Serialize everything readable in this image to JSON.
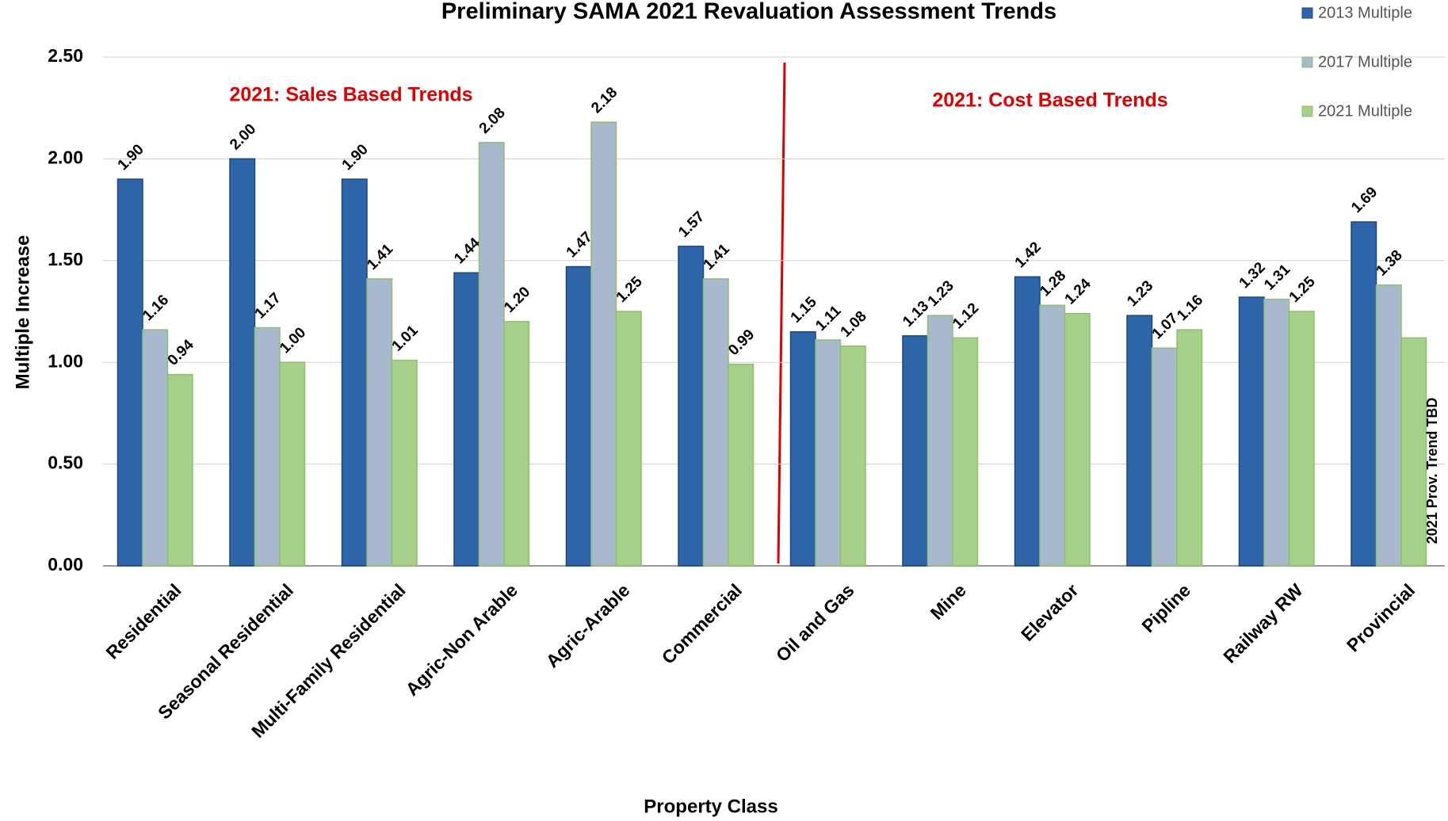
{
  "chart_data": {
    "type": "bar",
    "title": "Preliminary  SAMA 2021 Revaluation  Assessment  Trends",
    "x_label": "Property Class",
    "y_label": "Multiple Increase",
    "categories": [
      "Residential",
      "Seasonal Residential",
      "Multi-Family Residential",
      "Agric-Non Arable",
      "Agric-Arable",
      "Commercial",
      "Oil and Gas",
      "Mine",
      "Elevator",
      "Pipline",
      "Railway RW",
      "Provincial"
    ],
    "series": [
      {
        "name": "2013 Multiple",
        "color": "#2e64a8",
        "values": [
          1.9,
          2.0,
          1.9,
          1.44,
          1.47,
          1.57,
          1.15,
          1.13,
          1.42,
          1.23,
          1.32,
          1.69
        ],
        "value_labels": [
          "1.90",
          "2.00",
          "1.90",
          "1.44",
          "1.47",
          "1.57",
          "1.15",
          "1.13",
          "1.42",
          "1.23",
          "1.32",
          "1.69"
        ]
      },
      {
        "name": "2017 Multiple",
        "color": "#a9b9cd",
        "values": [
          1.16,
          1.17,
          1.41,
          2.08,
          2.18,
          1.41,
          1.11,
          1.23,
          1.28,
          1.07,
          1.31,
          1.38
        ],
        "value_labels": [
          "1.16",
          "1.17",
          "1.41",
          "2.08",
          "2.18",
          "1.41",
          "1.11",
          "1.23",
          "1.28",
          "1.07",
          "1.31",
          "1.38"
        ]
      },
      {
        "name": "2021 Multiple",
        "color": "#a6d08a",
        "values": [
          0.94,
          1.0,
          1.01,
          1.2,
          1.25,
          0.99,
          1.08,
          1.12,
          1.24,
          1.16,
          1.25,
          1.12
        ],
        "value_labels": [
          "0.94",
          "1.00",
          "1.01",
          "1.20",
          "1.25",
          "0.99",
          "1.08",
          "1.12",
          "1.24",
          "1.16",
          "1.25",
          null
        ]
      }
    ],
    "ylim": [
      0,
      2.5
    ],
    "yticks": [
      {
        "value": 0,
        "label": "0.00"
      },
      {
        "value": 0.5,
        "label": "0.50"
      },
      {
        "value": 1,
        "label": "1.00"
      },
      {
        "value": 1.5,
        "label": "1.50"
      },
      {
        "value": 2,
        "label": "2.00"
      },
      {
        "value": 2.5,
        "label": "2.50"
      }
    ],
    "grid": true,
    "legend": "top-right",
    "annotations": [
      "2021: Sales Based Trends",
      "2021: Cost Based Trends",
      "2021 Prov. Trend TBD"
    ]
  }
}
